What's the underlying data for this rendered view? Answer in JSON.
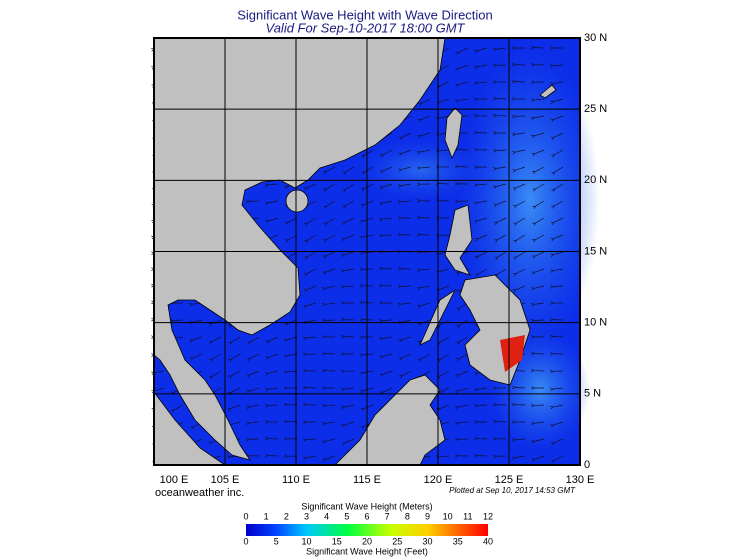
{
  "header": {
    "title": "Significant Wave Height with Wave Direction",
    "subtitle": "Valid For Sep-10-2017 18:00 GMT"
  },
  "map": {
    "lat_labels": [
      "30 N",
      "25 N",
      "20 N",
      "15 N",
      "10 N",
      "5 N",
      "0"
    ],
    "lon_labels": [
      "100 E",
      "105 E",
      "110 E",
      "115 E",
      "120 E",
      "125 E",
      "130 E"
    ]
  },
  "footer": {
    "credit": "oceanweather inc.",
    "plotted": "Plotted at Sep 10, 2017 14:53 GMT"
  },
  "colorbar": {
    "title_top": "Significant Wave Height (Meters)",
    "meters": [
      "0",
      "1",
      "2",
      "3",
      "4",
      "5",
      "6",
      "7",
      "8",
      "9",
      "10",
      "11",
      "12"
    ],
    "feet": [
      "0",
      "5",
      "10",
      "15",
      "20",
      "25",
      "30",
      "35",
      "40"
    ],
    "title_bottom": "Significant Wave Height (Feet)"
  }
}
